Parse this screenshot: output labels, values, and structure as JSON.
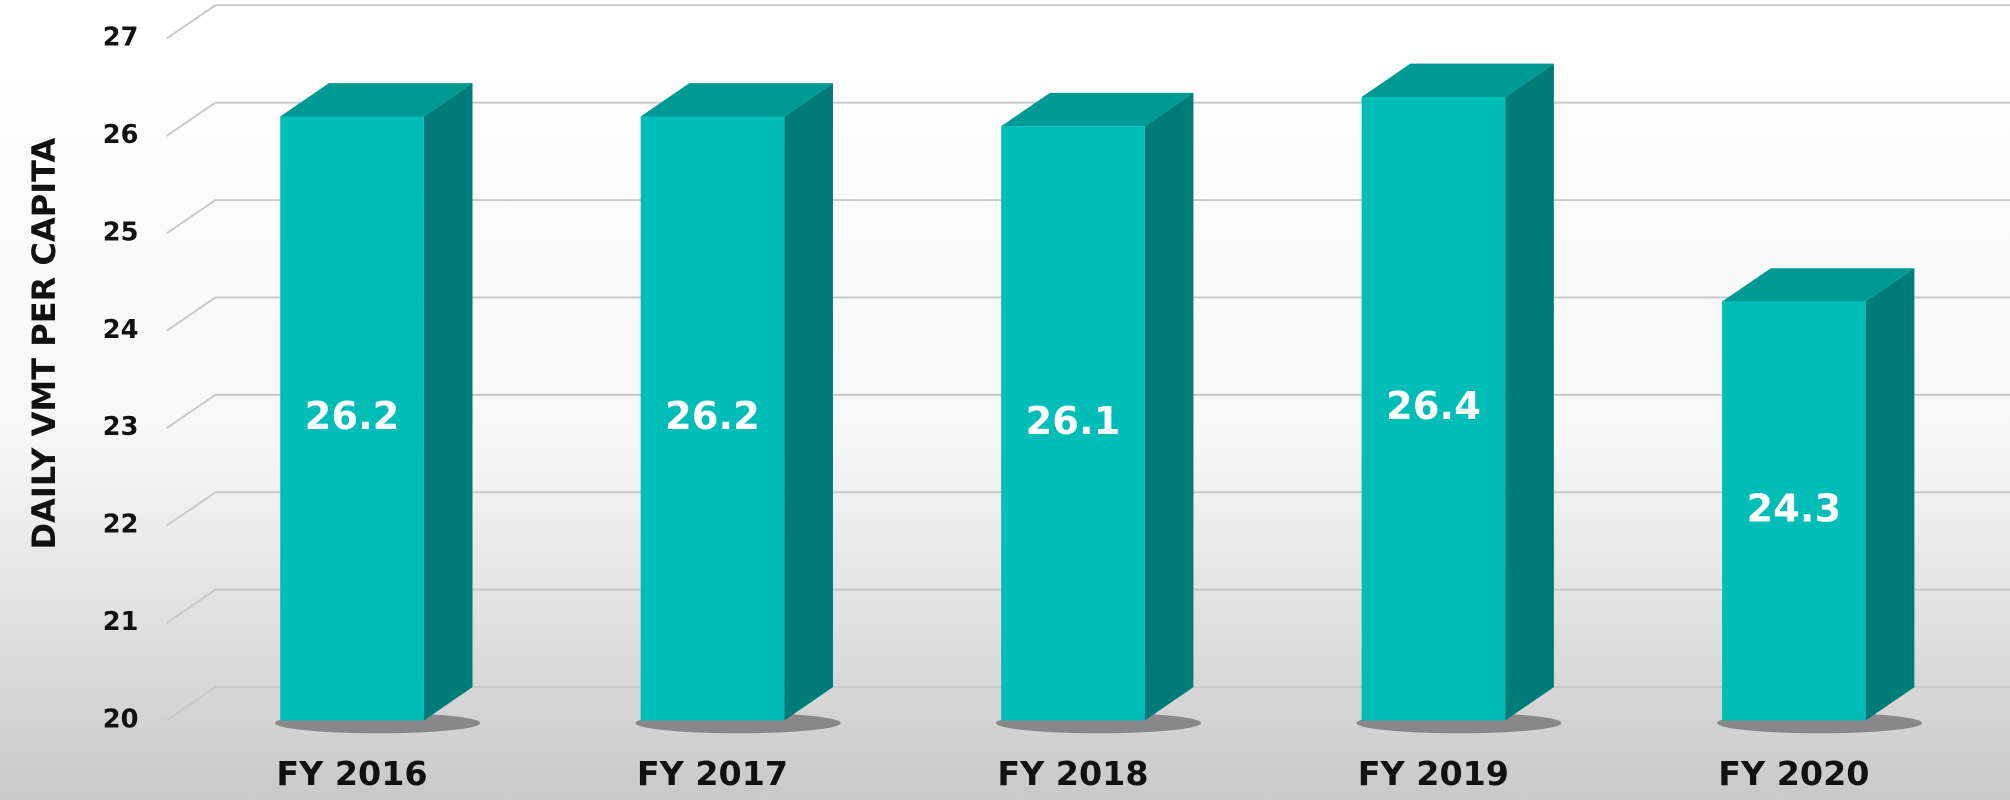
{
  "chart_data": {
    "type": "bar3d",
    "y_label": "DAILY VMT PER CAPITA",
    "categories": [
      "FY 2016",
      "FY 2017",
      "FY 2018",
      "FY 2019",
      "FY 2020"
    ],
    "values": [
      26.2,
      26.2,
      26.1,
      26.4,
      24.3
    ],
    "color": "#00bdb8",
    "side_color": "#007c78",
    "top_color": "#009a95",
    "ylim": [
      20,
      27
    ],
    "yticks": [
      20,
      21,
      22,
      23,
      24,
      25,
      26,
      27
    ],
    "grid": true
  }
}
